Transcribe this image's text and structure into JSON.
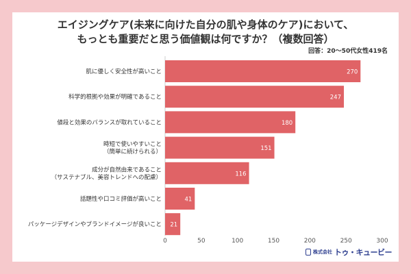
{
  "title_line1": "エイジングケア(未来に向けた自分の肌や身体のケア)において、",
  "title_line2": "もっとも重要だと思う価値観は何ですか？（複数回答）",
  "respondents": "回答：20～50代女性419名",
  "logo": {
    "prefix": "株式会社",
    "name": "トゥ・キュービー",
    "icon": "hourglass-icon"
  },
  "colors": {
    "bar": "#e06366",
    "background": "#f6c9cc",
    "axis": "#cccccc"
  },
  "chart_data": {
    "type": "bar",
    "orientation": "horizontal",
    "categories": [
      [
        "肌に優しく安全性が高いこと"
      ],
      [
        "科学的根拠や効果が明確であること"
      ],
      [
        "値段と効果のバランスが取れていること"
      ],
      [
        "時短で使いやすいこと",
        "（簡単に続けられる）"
      ],
      [
        "成分が自然由来であること",
        "（サステナブル、美容トレンドへの配慮）"
      ],
      [
        "話題性や口コミ評価が高いこと"
      ],
      [
        "パッケージデザインやブランドイメージが良いこと"
      ]
    ],
    "values": [
      270,
      247,
      180,
      151,
      116,
      41,
      21
    ],
    "xlim": [
      0,
      300
    ],
    "xticks": [
      0,
      50,
      100,
      150,
      200,
      250,
      300
    ],
    "grid": false
  }
}
